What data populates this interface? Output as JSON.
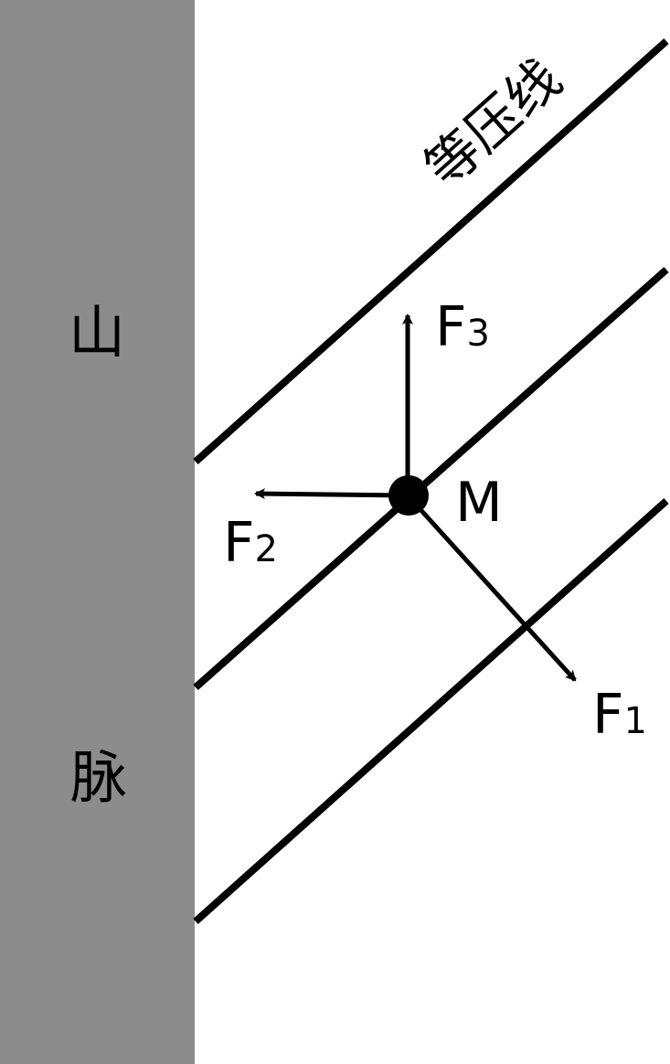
{
  "mountain": {
    "label_top": "山",
    "label_bottom": "脉",
    "color": "#8c8c8c"
  },
  "isobar": {
    "label": "等压线",
    "color": "#000000"
  },
  "point": {
    "label": "M"
  },
  "forces": [
    {
      "letter": "F",
      "sub": "1"
    },
    {
      "letter": "F",
      "sub": "2"
    },
    {
      "letter": "F",
      "sub": "3"
    }
  ]
}
